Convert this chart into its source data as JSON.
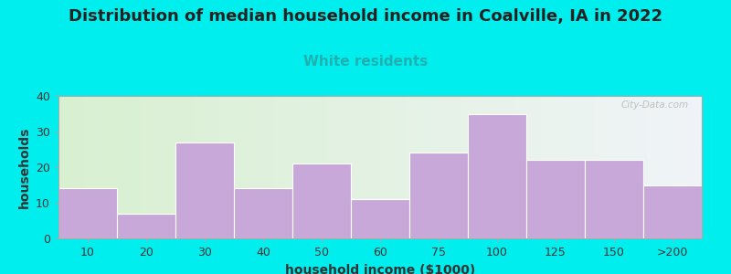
{
  "title": "Distribution of median household income in Coalville, IA in 2022",
  "subtitle": "White residents",
  "xlabel": "household income ($1000)",
  "ylabel": "households",
  "background_color": "#00EEEE",
  "plot_bg_gradient_left": "#d8f0d0",
  "plot_bg_gradient_right": "#f0f4f8",
  "bar_color": "#c8a8d8",
  "bar_edge_color": "#ffffff",
  "categories": [
    "10",
    "20",
    "30",
    "40",
    "50",
    "60",
    "75",
    "100",
    "125",
    "150",
    ">200"
  ],
  "values": [
    14,
    7,
    27,
    14,
    21,
    11,
    24,
    35,
    22,
    22,
    15
  ],
  "ylim": [
    0,
    40
  ],
  "yticks": [
    0,
    10,
    20,
    30,
    40
  ],
  "title_fontsize": 13,
  "subtitle_fontsize": 11,
  "subtitle_color": "#20b0b0",
  "axis_label_fontsize": 10,
  "tick_fontsize": 9,
  "watermark": "City-Data.com"
}
